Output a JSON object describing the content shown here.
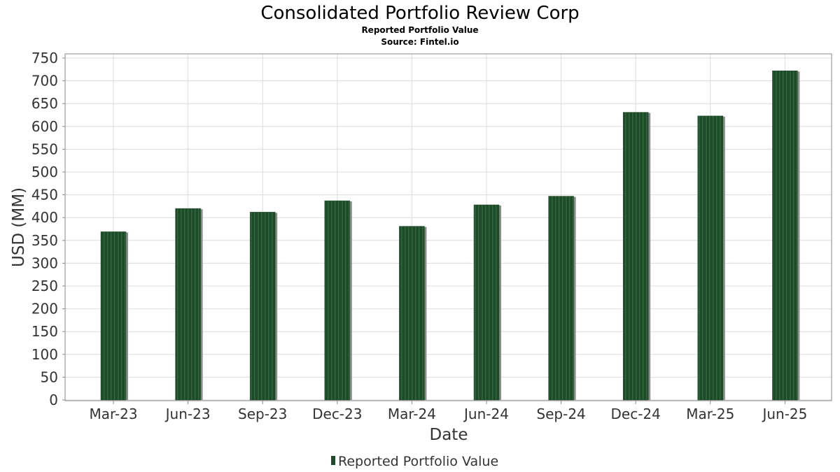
{
  "chart_data": {
    "type": "bar",
    "title": "Consolidated Portfolio Review Corp",
    "subtitle": "Reported Portfolio Value",
    "source": "Source: Fintel.io",
    "xlabel": "Date",
    "ylabel": "USD (MM)",
    "ylim": [
      0,
      750
    ],
    "ytick_step": 50,
    "categories": [
      "Mar-23",
      "Jun-23",
      "Sep-23",
      "Dec-23",
      "Mar-24",
      "Jun-24",
      "Sep-24",
      "Dec-24",
      "Mar-25",
      "Jun-25"
    ],
    "series": [
      {
        "name": "Reported Portfolio Value",
        "values": [
          369,
          420,
          412,
          437,
          381,
          428,
          447,
          631,
          623,
          722
        ]
      }
    ],
    "grid": true,
    "legend_position": "bottom-center",
    "colors": {
      "bar": "#1f4a2a",
      "bar_stripe": "#2f6a3c",
      "bar_shadow": "#8c8c8c",
      "grid": "#dcdcdc",
      "frame": "#8a8a8a"
    }
  }
}
